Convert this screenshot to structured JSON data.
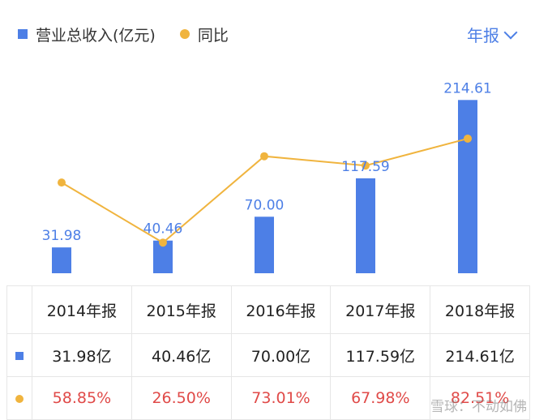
{
  "legend": {
    "revenue_label": "营业总收入(亿元)",
    "yoy_label": "同比"
  },
  "period_selector": {
    "label": "年报"
  },
  "colors": {
    "bar": "#4d7fe6",
    "line": "#f0b43e",
    "pct_text": "#e04a48"
  },
  "chart_data": {
    "type": "bar",
    "categories": [
      "2014年报",
      "2015年报",
      "2016年报",
      "2017年报",
      "2018年报"
    ],
    "series": [
      {
        "name": "营业总收入(亿元)",
        "type": "bar",
        "values": [
          31.98,
          40.46,
          70.0,
          117.59,
          214.61
        ],
        "labels": [
          "31.98",
          "40.46",
          "70.00",
          "117.59",
          "214.61"
        ]
      },
      {
        "name": "同比",
        "type": "line",
        "values": [
          58.85,
          26.5,
          73.01,
          67.98,
          82.51
        ],
        "unit": "%"
      }
    ],
    "bar_ylim": [
      0,
      230
    ],
    "line_ylim": [
      10,
      110
    ]
  },
  "table": {
    "headers": [
      "2014年报",
      "2015年报",
      "2016年报",
      "2017年报",
      "2018年报"
    ],
    "revenue_row": [
      "31.98亿",
      "40.46亿",
      "70.00亿",
      "117.59亿",
      "214.61亿"
    ],
    "yoy_row": [
      "58.85%",
      "26.50%",
      "73.01%",
      "67.98%",
      "82.51%"
    ]
  },
  "watermark": "雪球：不动如佛"
}
